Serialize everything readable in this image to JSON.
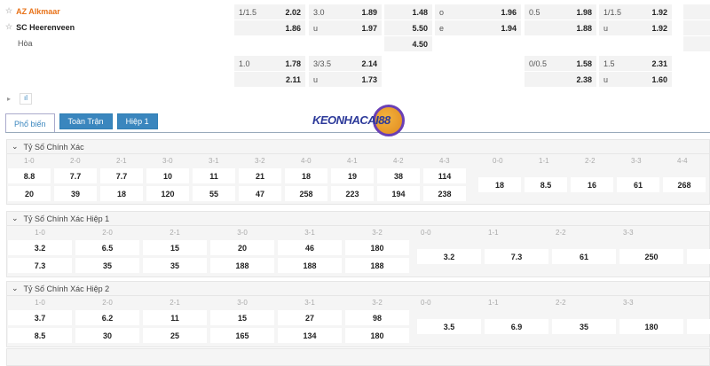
{
  "match": {
    "home": "AZ Alkmaar",
    "away": "SC Heerenveen",
    "draw": "Hòa",
    "home_color": "#e8731a"
  },
  "odds_rows": [
    [
      {
        "l": "1/1.5",
        "v": "2.02"
      },
      {
        "l": "3.0",
        "v": "1.89"
      },
      {
        "l": "",
        "v": "1.48"
      },
      {
        "l": "o",
        "v": "1.96"
      },
      {
        "l": "0.5",
        "v": "1.98"
      },
      {
        "l": "1/1.5",
        "v": "1.92"
      }
    ],
    [
      {
        "l": "",
        "v": "1.86"
      },
      {
        "l": "u",
        "v": "1.97"
      },
      {
        "l": "",
        "v": "5.50"
      },
      {
        "l": "e",
        "v": "1.94"
      },
      {
        "l": "",
        "v": "1.88"
      },
      {
        "l": "u",
        "v": "1.92"
      }
    ],
    [
      null,
      null,
      {
        "l": "",
        "v": "4.50"
      },
      null,
      null,
      null
    ],
    [
      {
        "l": "1.0",
        "v": "1.78"
      },
      {
        "l": "3/3.5",
        "v": "2.14"
      },
      null,
      null,
      {
        "l": "0/0.5",
        "v": "1.58"
      },
      {
        "l": "1.5",
        "v": "2.31"
      }
    ],
    [
      {
        "l": "",
        "v": "2.11"
      },
      {
        "l": "u",
        "v": "1.73"
      },
      null,
      null,
      {
        "l": "",
        "v": "2.38"
      },
      {
        "l": "u",
        "v": "1.60"
      }
    ]
  ],
  "tabs": [
    "Phổ biến",
    "Toàn Trận",
    "Hiệp 1"
  ],
  "logo_text": "KEONHACAI88",
  "sections": [
    {
      "title": "Tỷ Số Chính Xác",
      "win_labels": [
        "1-0",
        "2-0",
        "2-1",
        "3-0",
        "3-1",
        "3-2",
        "4-0",
        "4-1",
        "4-2",
        "4-3"
      ],
      "home": [
        "8.8",
        "7.7",
        "7.7",
        "10",
        "11",
        "21",
        "18",
        "19",
        "38",
        "114"
      ],
      "away": [
        "20",
        "39",
        "18",
        "120",
        "55",
        "47",
        "258",
        "223",
        "194",
        "238"
      ],
      "draw_labels": [
        "0-0",
        "1-1",
        "2-2",
        "3-3",
        "4-4"
      ],
      "draw": [
        "18",
        "8.5",
        "16",
        "61",
        "268"
      ]
    },
    {
      "title": "Tỷ Số Chính Xác Hiệp 1",
      "win_labels": [
        "1-0",
        "2-0",
        "2-1",
        "3-0",
        "3-1",
        "3-2"
      ],
      "home": [
        "3.2",
        "6.5",
        "15",
        "20",
        "46",
        "180"
      ],
      "away": [
        "7.3",
        "35",
        "35",
        "188",
        "188",
        "188"
      ],
      "draw_labels": [
        "0-0",
        "1-1",
        "2-2",
        "3-3"
      ],
      "draw": [
        "3.2",
        "7.3",
        "61",
        "250"
      ]
    },
    {
      "title": "Tỷ Số Chính Xác Hiệp 2",
      "win_labels": [
        "1-0",
        "2-0",
        "2-1",
        "3-0",
        "3-1",
        "3-2"
      ],
      "home": [
        "3.7",
        "6.2",
        "11",
        "15",
        "27",
        "98"
      ],
      "away": [
        "8.5",
        "30",
        "25",
        "165",
        "134",
        "180"
      ],
      "draw_labels": [
        "0-0",
        "1-1",
        "2-2",
        "3-3"
      ],
      "draw": [
        "3.5",
        "6.9",
        "35",
        "180"
      ]
    }
  ]
}
